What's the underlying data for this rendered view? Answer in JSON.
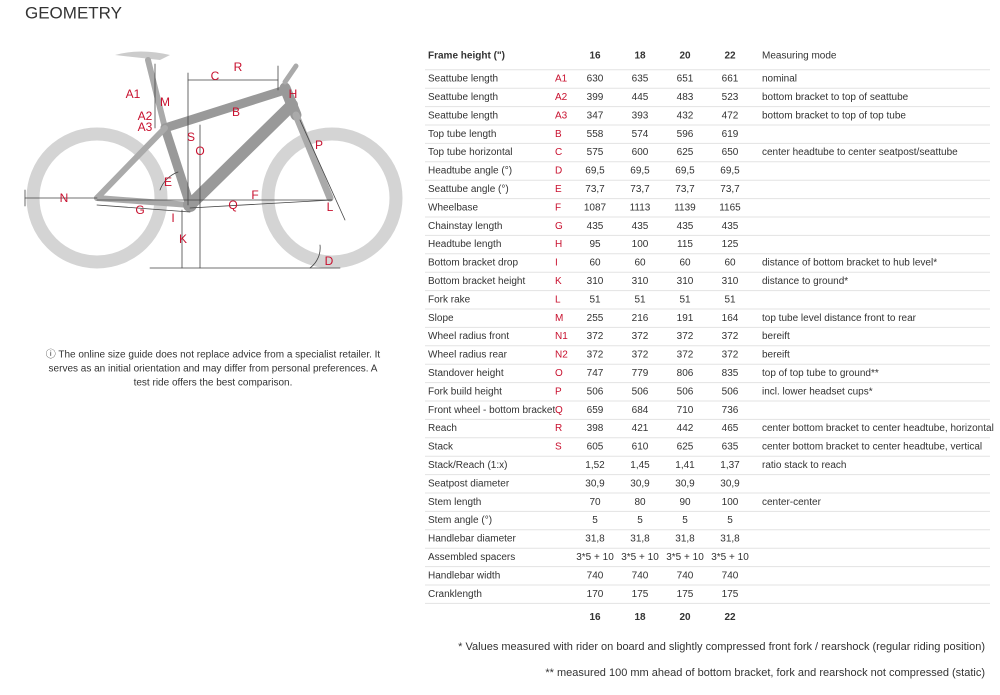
{
  "title": "GEOMETRY",
  "diagram": {
    "labels": [
      "A1",
      "M",
      "A2",
      "A3",
      "R",
      "C",
      "H",
      "B",
      "S",
      "O",
      "E",
      "F",
      "P",
      "N",
      "G",
      "Q",
      "L",
      "I",
      "K",
      "D"
    ]
  },
  "note": [
    "ⓘ The online size guide does not replace advice from a specialist retailer. It",
    "serves as an initial orientation and may differ from personal preferences. A",
    "test ride offers the best comparison."
  ],
  "table": {
    "header": {
      "label": "Frame height (\")",
      "sizes": [
        "16",
        "18",
        "20",
        "22"
      ],
      "mode": "Measuring mode"
    },
    "rows": [
      {
        "name": "Seattube length",
        "code": "A1",
        "sizes": [
          "630",
          "635",
          "651",
          "661"
        ],
        "mode": "nominal"
      },
      {
        "name": "Seattube length",
        "code": "A2",
        "sizes": [
          "399",
          "445",
          "483",
          "523"
        ],
        "mode": "bottom bracket to top of seattube"
      },
      {
        "name": "Seattube length",
        "code": "A3",
        "sizes": [
          "347",
          "393",
          "432",
          "472"
        ],
        "mode": "bottom bracket to top of top tube"
      },
      {
        "name": "Top tube length",
        "code": "B",
        "sizes": [
          "558",
          "574",
          "596",
          "619"
        ]
      },
      {
        "name": "Top tube horizontal",
        "code": "C",
        "sizes": [
          "575",
          "600",
          "625",
          "650"
        ],
        "mode": "center headtube to center seatpost/seattube"
      },
      {
        "name": "Headtube angle (°)",
        "code": "D",
        "sizes": [
          "69,5",
          "69,5",
          "69,5",
          "69,5"
        ]
      },
      {
        "name": "Seattube angle (°)",
        "code": "E",
        "sizes": [
          "73,7",
          "73,7",
          "73,7",
          "73,7"
        ]
      },
      {
        "name": "Wheelbase",
        "code": "F",
        "sizes": [
          "1087",
          "1113",
          "1139",
          "1165"
        ]
      },
      {
        "name": "Chainstay length",
        "code": "G",
        "sizes": [
          "435",
          "435",
          "435",
          "435"
        ]
      },
      {
        "name": "Headtube length",
        "code": "H",
        "sizes": [
          "95",
          "100",
          "115",
          "125"
        ]
      },
      {
        "name": "Bottom bracket drop",
        "code": "I",
        "sizes": [
          "60",
          "60",
          "60",
          "60"
        ],
        "mode": "distance of bottom bracket to hub level*"
      },
      {
        "name": "Bottom bracket height",
        "code": "K",
        "sizes": [
          "310",
          "310",
          "310",
          "310"
        ],
        "mode": "distance to ground*"
      },
      {
        "name": "Fork rake",
        "code": "L",
        "sizes": [
          "51",
          "51",
          "51",
          "51"
        ]
      },
      {
        "name": "Slope",
        "code": "M",
        "sizes": [
          "255",
          "216",
          "191",
          "164"
        ],
        "mode": "top tube level distance front to rear"
      },
      {
        "name": "Wheel radius front",
        "code": "N1",
        "sizes": [
          "372",
          "372",
          "372",
          "372"
        ],
        "mode": "bereift"
      },
      {
        "name": "Wheel radius rear",
        "code": "N2",
        "sizes": [
          "372",
          "372",
          "372",
          "372"
        ],
        "mode": "bereift"
      },
      {
        "name": "Standover height",
        "code": "O",
        "sizes": [
          "747",
          "779",
          "806",
          "835"
        ],
        "mode": "top of top tube to ground**"
      },
      {
        "name": "Fork build height",
        "code": "P",
        "sizes": [
          "506",
          "506",
          "506",
          "506"
        ],
        "mode": "incl. lower headset cups*"
      },
      {
        "name": "Front wheel - bottom bracket",
        "code": "Q",
        "sizes": [
          "659",
          "684",
          "710",
          "736"
        ]
      },
      {
        "name": "Reach",
        "code": "R",
        "sizes": [
          "398",
          "421",
          "442",
          "465"
        ],
        "mode": "center bottom bracket to center headtube, horizontal"
      },
      {
        "name": "Stack",
        "code": "S",
        "sizes": [
          "605",
          "610",
          "625",
          "635"
        ],
        "mode": "center bottom bracket to center headtube, vertical"
      },
      {
        "name": "Stack/Reach (1:x)",
        "sizes": [
          "1,52",
          "1,45",
          "1,41",
          "1,37"
        ],
        "mode": "ratio stack to reach"
      },
      {
        "name": "Seatpost diameter",
        "sizes": [
          "30,9",
          "30,9",
          "30,9",
          "30,9"
        ]
      },
      {
        "name": "Stem length",
        "sizes": [
          "70",
          "80",
          "90",
          "100"
        ],
        "mode": "center-center"
      },
      {
        "name": "Stem angle (°)",
        "sizes": [
          "5",
          "5",
          "5",
          "5"
        ]
      },
      {
        "name": "Handlebar diameter",
        "sizes": [
          "31,8",
          "31,8",
          "31,8",
          "31,8"
        ]
      },
      {
        "name": "Assembled spacers",
        "sizes": [
          "3*5 + 10",
          "3*5 + 10",
          "3*5 + 10",
          "3*5 + 10"
        ]
      },
      {
        "name": "Handlebar width",
        "sizes": [
          "740",
          "740",
          "740",
          "740"
        ]
      },
      {
        "name": "Cranklength",
        "sizes": [
          "170",
          "175",
          "175",
          "175"
        ]
      }
    ],
    "footer_sizes": [
      "16",
      "18",
      "20",
      "22"
    ]
  },
  "footnotes": [
    "* Values measured with rider on board and slightly compressed front fork / rearshock (regular riding position)",
    "** measured 100 mm ahead of bottom bracket, fork and rearshock not compressed (static)"
  ]
}
